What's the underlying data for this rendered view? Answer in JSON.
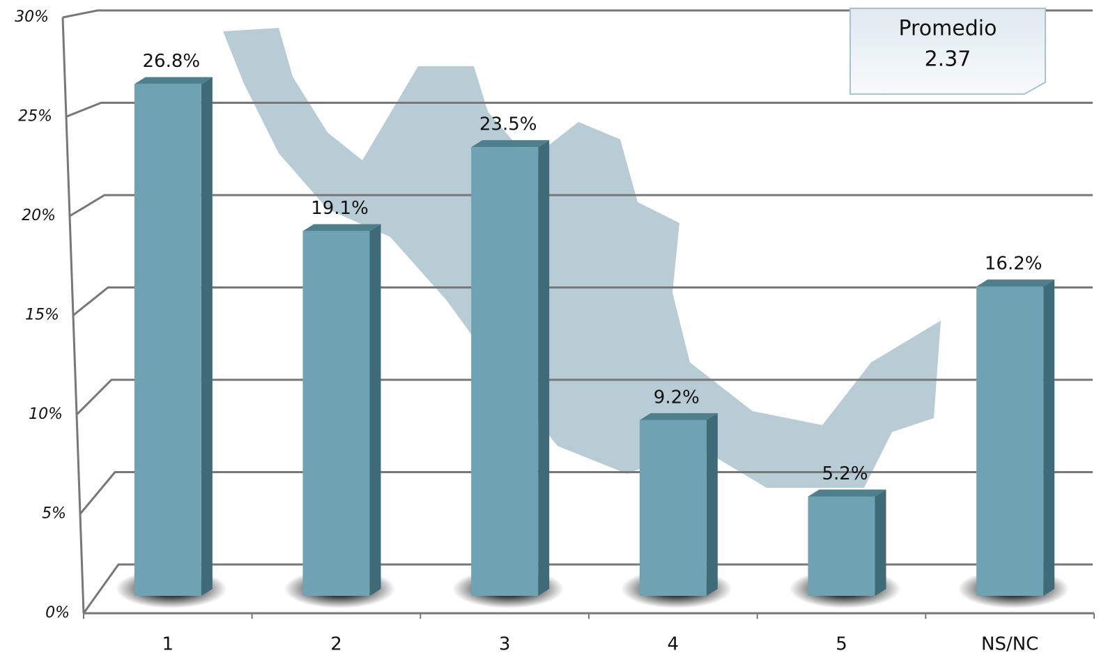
{
  "chart_data": {
    "type": "bar",
    "categories": [
      "1",
      "2",
      "3",
      "4",
      "5",
      "NS/NC"
    ],
    "values": [
      26.8,
      19.1,
      23.5,
      9.2,
      5.2,
      16.2
    ],
    "value_labels": [
      "26.8%",
      "19.1%",
      "23.5%",
      "9.2%",
      "5.2%",
      "16.2%"
    ],
    "color": "#6fa3b3",
    "ylim": [
      0,
      30
    ],
    "yticks": [
      {
        "value": 0,
        "label": "0%"
      },
      {
        "value": 5,
        "label": "5%"
      },
      {
        "value": 10,
        "label": "10%"
      },
      {
        "value": 15,
        "label": "15%"
      },
      {
        "value": 20,
        "label": "20%"
      },
      {
        "value": 25,
        "label": "25%"
      },
      {
        "value": 30,
        "label": "30%"
      }
    ],
    "grid": true,
    "annotation": {
      "title": "Promedio",
      "value": 2.37
    }
  }
}
